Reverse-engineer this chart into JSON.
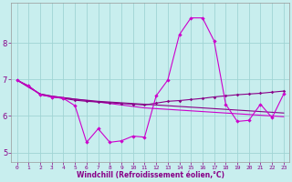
{
  "bg_color": "#c8eeee",
  "grid_color": "#a0d4d4",
  "line_color_bright": "#cc00cc",
  "line_color_dark": "#880088",
  "xlim": [
    -0.5,
    23.5
  ],
  "ylim": [
    4.75,
    9.1
  ],
  "yticks": [
    5,
    6,
    7,
    8
  ],
  "xticks": [
    0,
    1,
    2,
    3,
    4,
    5,
    6,
    7,
    8,
    9,
    10,
    11,
    12,
    13,
    14,
    15,
    16,
    17,
    18,
    19,
    20,
    21,
    22,
    23
  ],
  "xlabel": "Windchill (Refroidissement éolien,°C)",
  "s1_x": [
    0,
    1,
    2,
    3,
    4,
    5,
    6,
    7,
    8,
    9,
    10,
    11,
    12,
    13,
    14,
    15,
    16,
    17,
    18,
    19,
    20,
    21,
    22,
    23
  ],
  "s1_y": [
    6.98,
    6.82,
    6.58,
    6.52,
    6.48,
    6.28,
    5.28,
    5.65,
    5.28,
    5.32,
    5.45,
    5.42,
    6.55,
    6.98,
    8.22,
    8.68,
    8.68,
    8.05,
    6.32,
    5.85,
    5.88,
    6.32,
    5.95,
    6.6
  ],
  "s2_x": [
    0,
    1,
    2,
    3,
    4,
    5,
    6,
    7,
    8,
    9,
    10,
    11,
    12,
    13,
    14,
    15,
    16,
    17,
    18,
    19,
    20,
    21,
    22,
    23
  ],
  "s2_y": [
    6.98,
    6.82,
    6.58,
    6.52,
    6.48,
    6.43,
    6.4,
    6.38,
    6.36,
    6.34,
    6.32,
    6.3,
    6.35,
    6.4,
    6.42,
    6.45,
    6.48,
    6.52,
    6.55,
    6.58,
    6.6,
    6.62,
    6.65,
    6.68
  ],
  "s3_x": [
    0,
    1,
    2,
    3,
    4,
    5,
    6,
    7,
    8,
    9,
    10,
    11,
    12,
    13,
    14,
    15,
    16,
    17,
    18,
    19,
    20,
    21,
    22,
    23
  ],
  "s3_y": [
    6.98,
    6.78,
    6.6,
    6.54,
    6.5,
    6.46,
    6.42,
    6.38,
    6.34,
    6.3,
    6.26,
    6.22,
    6.2,
    6.18,
    6.16,
    6.14,
    6.12,
    6.1,
    6.08,
    6.06,
    6.04,
    6.02,
    6.0,
    5.98
  ],
  "s4_x": [
    0,
    1,
    2,
    3,
    4,
    5,
    6,
    7,
    8,
    9,
    10,
    11,
    12,
    13,
    14,
    15,
    16,
    17,
    18,
    19,
    20,
    21,
    22,
    23
  ],
  "s4_y": [
    6.98,
    6.8,
    6.6,
    6.54,
    6.5,
    6.46,
    6.43,
    6.4,
    6.38,
    6.36,
    6.34,
    6.32,
    6.3,
    6.28,
    6.26,
    6.24,
    6.22,
    6.2,
    6.18,
    6.16,
    6.14,
    6.12,
    6.1,
    6.08
  ]
}
